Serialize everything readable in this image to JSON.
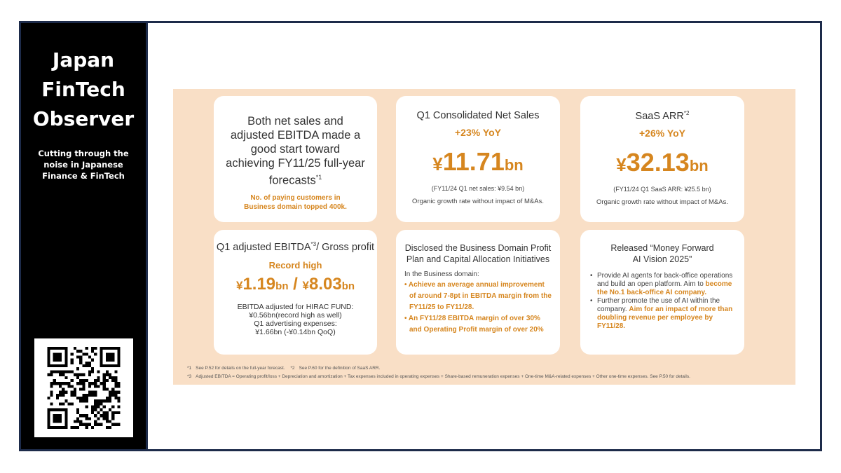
{
  "sidebar": {
    "brand_lines": [
      "Japan",
      "FinTech",
      "Observer"
    ],
    "tagline_lines": [
      "Cutting through the",
      "noise in Japanese",
      "Finance & FinTech"
    ],
    "qr_icon": "qr-code-icon"
  },
  "slide": {
    "card1": {
      "headline": [
        "Both net sales and",
        "adjusted EBITDA made a",
        "good start toward",
        "achieving FY11/25 full-year",
        "forecasts"
      ],
      "headline_sup": "*1",
      "sub": [
        "No. of paying customers in",
        "Business domain topped 400k."
      ]
    },
    "card2": {
      "title": "Q1 Consolidated Net Sales",
      "growth": "+23% YoY",
      "yen": "¥",
      "value": "11.71",
      "unit": "bn",
      "note": "(FY11/24 Q1 net sales: ¥9.54 bn)",
      "organic": "Organic growth rate without impact of M&As."
    },
    "card3": {
      "title": "SaaS ARR",
      "title_sup": "*2",
      "growth": "+26% YoY",
      "yen": "¥",
      "value": "32.13",
      "unit": "bn",
      "note": "(FY11/24 Q1 SaaS ARR: ¥25.5 bn)",
      "organic": "Organic growth rate without impact of M&As."
    },
    "card4": {
      "title_a": "Q1 adjusted EBITDA",
      "title_sup": "*3",
      "title_b": "/ Gross profit",
      "record": "Record high",
      "yen1": "¥",
      "value1": "1.19",
      "unit1": "bn",
      "sep": " / ",
      "yen2": "¥",
      "value2": "8.03",
      "unit2": "bn",
      "details": [
        "EBITDA adjusted for HIRAC FUND:",
        "¥0.56bn(record high as well)",
        "Q1 advertising expenses:",
        "¥1.66bn (-¥0.14bn QoQ)"
      ]
    },
    "card5": {
      "title": [
        "Disclosed the Business Domain Profit",
        "Plan and Capital Allocation Initiatives"
      ],
      "lead": "In the Business domain:",
      "bullets": [
        "Achieve an average annual improvement of around 7-8pt in EBITDA margin from the FY11/25 to FY11/28.",
        "An FY11/28 EBITDA margin of over 30% and Operating Profit margin of over 20%"
      ]
    },
    "card6": {
      "title": [
        "Released “Money Forward",
        "AI Vision 2025”"
      ],
      "b1_plain": "Provide AI agents for back-office operations and build an open platform. Aim to ",
      "b1_hl": "become the No.1 back-office AI company.",
      "b2_plain": "Further promote the use of AI within the company. ",
      "b2_hl": "Aim for an impact of more than doubling revenue per employee by FY11/28."
    },
    "footnotes": {
      "n1_mark": "*1",
      "n1": "See P.52 for details on the full-year forecast.",
      "n2_mark": "*2",
      "n2": "See P.60 for the definition of SaaS ARR.",
      "n3_mark": "*3",
      "n3": "Adjusted EBITDA = Operating profit/loss + Depreciation and amortization + Tax expenses included in operating expenses + Share-based remuneration expenses + One-time M&A-related expenses + Other one-time expenses. See P.50 for details."
    }
  }
}
